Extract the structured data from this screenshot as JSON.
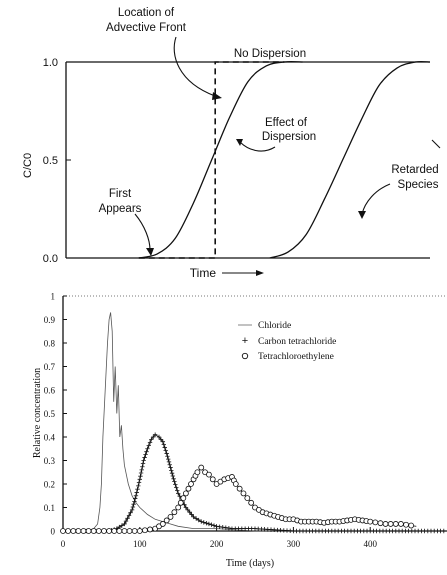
{
  "chart_data": [
    {
      "type": "line",
      "title": "",
      "xlabel": "Time",
      "ylabel": "C/C0",
      "yticks": [
        "0.0",
        "0.5",
        "1.0"
      ],
      "ylim": [
        0,
        1
      ],
      "xlim": [
        0,
        10
      ],
      "annotations": {
        "advective_front_line1": "Location of",
        "advective_front_line2": "Advective Front",
        "no_dispersion": "No Dispersion",
        "effect_line1": "Effect of",
        "effect_line2": "Dispersion",
        "first_line1": "First",
        "first_line2": "Appears",
        "retarded_line1": "Retarded",
        "retarded_line2": "Species"
      },
      "series": [
        {
          "style": "dashed",
          "x": [
            2.0,
            4.1,
            4.1,
            6.0
          ],
          "y": [
            0.0,
            0.0,
            1.0,
            1.0
          ]
        },
        {
          "style": "solid",
          "x": [
            2.0,
            2.5,
            3.0,
            3.5,
            4.0,
            4.5,
            5.0,
            5.5,
            6.0,
            6.5
          ],
          "y": [
            0.0,
            0.02,
            0.1,
            0.28,
            0.5,
            0.72,
            0.9,
            0.98,
            1.0,
            1.0
          ]
        },
        {
          "style": "solid",
          "x": [
            5.6,
            6.1,
            6.6,
            7.1,
            7.6,
            8.1,
            8.6,
            9.1,
            9.6,
            10.0
          ],
          "y": [
            0.0,
            0.03,
            0.12,
            0.3,
            0.5,
            0.7,
            0.88,
            0.97,
            1.0,
            1.0
          ]
        }
      ]
    },
    {
      "type": "line",
      "title": "",
      "xlabel": "Time (days)",
      "ylabel": "Relative concentration",
      "xlim": [
        0,
        500
      ],
      "ylim": [
        0,
        1
      ],
      "xticks": [
        "0",
        "100",
        "200",
        "300",
        "400"
      ],
      "yticks": [
        "0",
        "0.1",
        "0.2",
        "0.3",
        "0.4",
        "0.5",
        "0.6",
        "0.7",
        "0.8",
        "0.9",
        "1"
      ],
      "legend_position": "top-right",
      "series": [
        {
          "name": "Chloride",
          "marker": "line",
          "x": [
            0,
            30,
            40,
            45,
            48,
            50,
            52,
            55,
            58,
            60,
            62,
            64,
            66,
            68,
            70,
            72,
            74,
            76,
            78,
            80,
            85,
            90,
            95,
            100,
            110,
            120,
            130,
            140,
            150,
            170,
            200,
            250,
            300,
            400,
            500
          ],
          "y": [
            0,
            0,
            0.01,
            0.03,
            0.1,
            0.2,
            0.4,
            0.6,
            0.8,
            0.9,
            0.93,
            0.85,
            0.55,
            0.7,
            0.5,
            0.62,
            0.4,
            0.45,
            0.35,
            0.28,
            0.2,
            0.15,
            0.12,
            0.1,
            0.07,
            0.05,
            0.04,
            0.03,
            0.02,
            0.01,
            0.01,
            0,
            0,
            0,
            0
          ]
        },
        {
          "name": "Carbon tetrachloride",
          "marker": "plus",
          "x": [
            0,
            60,
            70,
            80,
            90,
            95,
            100,
            105,
            110,
            115,
            120,
            125,
            130,
            135,
            140,
            145,
            150,
            160,
            170,
            180,
            190,
            200,
            220,
            250,
            300,
            350,
            400,
            450,
            500
          ],
          "y": [
            0,
            0,
            0.01,
            0.03,
            0.09,
            0.15,
            0.22,
            0.3,
            0.35,
            0.39,
            0.41,
            0.4,
            0.38,
            0.33,
            0.27,
            0.21,
            0.16,
            0.1,
            0.06,
            0.04,
            0.03,
            0.02,
            0.01,
            0.01,
            0,
            0,
            0,
            0,
            0
          ]
        },
        {
          "name": "Tetrachloroethylene",
          "marker": "circle",
          "x": [
            0,
            100,
            120,
            130,
            140,
            150,
            160,
            170,
            175,
            180,
            185,
            190,
            200,
            210,
            220,
            225,
            230,
            240,
            250,
            260,
            270,
            280,
            290,
            300,
            310,
            320,
            330,
            340,
            350,
            360,
            370,
            380,
            390,
            400,
            420,
            440,
            460
          ],
          "y": [
            0,
            0,
            0.01,
            0.03,
            0.06,
            0.1,
            0.16,
            0.22,
            0.25,
            0.27,
            0.25,
            0.24,
            0.2,
            0.22,
            0.23,
            0.2,
            0.18,
            0.14,
            0.1,
            0.08,
            0.07,
            0.06,
            0.05,
            0.05,
            0.04,
            0.04,
            0.04,
            0.035,
            0.04,
            0.04,
            0.045,
            0.05,
            0.045,
            0.04,
            0.03,
            0.03,
            0.02
          ]
        }
      ]
    }
  ]
}
